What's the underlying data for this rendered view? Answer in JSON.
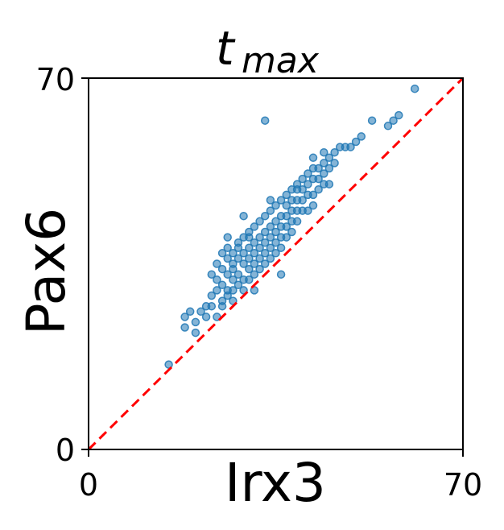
{
  "chart_data": {
    "type": "scatter",
    "title": {
      "main": "t",
      "sub": "max"
    },
    "xlabel": "Irx3",
    "ylabel": "Pax6",
    "xlim": [
      0,
      70
    ],
    "ylim": [
      0,
      70
    ],
    "xticks": [
      "0",
      "70"
    ],
    "yticks": [
      "0",
      "70"
    ],
    "grid": false,
    "point_color": "#1f77b4",
    "reference_line": {
      "from": [
        0,
        0
      ],
      "to": [
        70,
        70
      ],
      "color": "#ff0000",
      "style": "dashed"
    },
    "points": [
      [
        15,
        16
      ],
      [
        18,
        23
      ],
      [
        18,
        25
      ],
      [
        19,
        26
      ],
      [
        20,
        22
      ],
      [
        20,
        24
      ],
      [
        21,
        26
      ],
      [
        22,
        25
      ],
      [
        22,
        27
      ],
      [
        23,
        27
      ],
      [
        23,
        29
      ],
      [
        23,
        33
      ],
      [
        24,
        25
      ],
      [
        24,
        30
      ],
      [
        24,
        32
      ],
      [
        24,
        35
      ],
      [
        25,
        27
      ],
      [
        25,
        28
      ],
      [
        25,
        31
      ],
      [
        25,
        34
      ],
      [
        25,
        37
      ],
      [
        26,
        29
      ],
      [
        26,
        30
      ],
      [
        26,
        33
      ],
      [
        26,
        36
      ],
      [
        26,
        38
      ],
      [
        27,
        28
      ],
      [
        27,
        30
      ],
      [
        27,
        32
      ],
      [
        27,
        34
      ],
      [
        27,
        35
      ],
      [
        27,
        37
      ],
      [
        28,
        31
      ],
      [
        28,
        33
      ],
      [
        28,
        36
      ],
      [
        28,
        38
      ],
      [
        28,
        39
      ],
      [
        29,
        30
      ],
      [
        29,
        32
      ],
      [
        29,
        35
      ],
      [
        29,
        37
      ],
      [
        29,
        40
      ],
      [
        30,
        32
      ],
      [
        30,
        34
      ],
      [
        30,
        36
      ],
      [
        30,
        38
      ],
      [
        30,
        40
      ],
      [
        30,
        41
      ],
      [
        31,
        33
      ],
      [
        31,
        35
      ],
      [
        31,
        37
      ],
      [
        31,
        39
      ],
      [
        31,
        42
      ],
      [
        32,
        34
      ],
      [
        32,
        36
      ],
      [
        32,
        38
      ],
      [
        32,
        40
      ],
      [
        32,
        43
      ],
      [
        33,
        35
      ],
      [
        33,
        37
      ],
      [
        33,
        39
      ],
      [
        33,
        41
      ],
      [
        33,
        44
      ],
      [
        34,
        36
      ],
      [
        34,
        38
      ],
      [
        34,
        40
      ],
      [
        34,
        42
      ],
      [
        34,
        45
      ],
      [
        35,
        37
      ],
      [
        35,
        39
      ],
      [
        35,
        41
      ],
      [
        35,
        43
      ],
      [
        35,
        46
      ],
      [
        36,
        38
      ],
      [
        36,
        40
      ],
      [
        36,
        42
      ],
      [
        36,
        44
      ],
      [
        36,
        47
      ],
      [
        37,
        40
      ],
      [
        37,
        42
      ],
      [
        37,
        44
      ],
      [
        37,
        46
      ],
      [
        37,
        48
      ],
      [
        38,
        41
      ],
      [
        38,
        43
      ],
      [
        38,
        45
      ],
      [
        38,
        47
      ],
      [
        38,
        49
      ],
      [
        39,
        43
      ],
      [
        39,
        45
      ],
      [
        39,
        47
      ],
      [
        39,
        49
      ],
      [
        39,
        50
      ],
      [
        40,
        45
      ],
      [
        40,
        47
      ],
      [
        40,
        49
      ],
      [
        40,
        51
      ],
      [
        41,
        45
      ],
      [
        41,
        48
      ],
      [
        41,
        50
      ],
      [
        41,
        52
      ],
      [
        42,
        46
      ],
      [
        42,
        48
      ],
      [
        42,
        51
      ],
      [
        42,
        53
      ],
      [
        42,
        55
      ],
      [
        43,
        49
      ],
      [
        43,
        51
      ],
      [
        43,
        53
      ],
      [
        44,
        50
      ],
      [
        44,
        52
      ],
      [
        44,
        54
      ],
      [
        44,
        56
      ],
      [
        45,
        50
      ],
      [
        45,
        53
      ],
      [
        45,
        55
      ],
      [
        46,
        54
      ],
      [
        46,
        56
      ],
      [
        47,
        57
      ],
      [
        48,
        57
      ],
      [
        49,
        57
      ],
      [
        50,
        58
      ],
      [
        51,
        59
      ],
      [
        53,
        62
      ],
      [
        56,
        61
      ],
      [
        57,
        62
      ],
      [
        58,
        63
      ],
      [
        61,
        68
      ],
      [
        33,
        62
      ],
      [
        26,
        40
      ],
      [
        36,
        33
      ],
      [
        29,
        44
      ],
      [
        34,
        47
      ],
      [
        31,
        30
      ]
    ]
  }
}
